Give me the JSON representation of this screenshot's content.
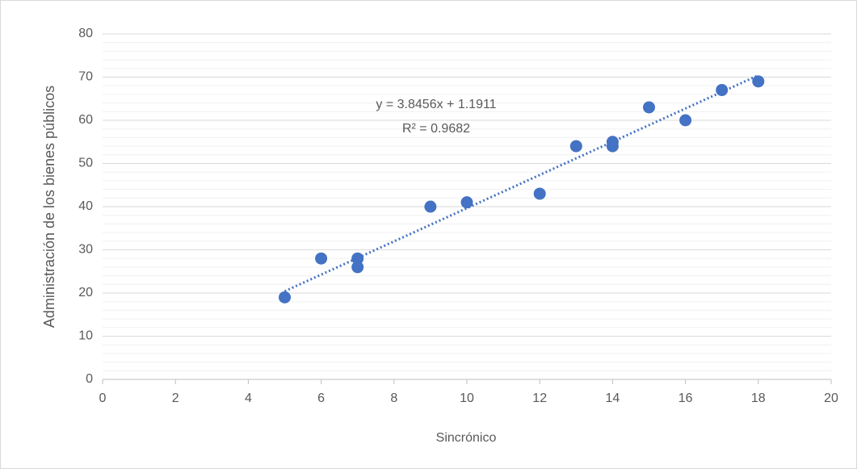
{
  "chart_data": {
    "type": "scatter",
    "x_label": "Sincrónico",
    "y_label": "Administración de los bienes públicos",
    "series": [
      {
        "color": "#4472c4",
        "x": [
          5,
          6,
          7,
          7,
          9,
          10,
          12,
          13,
          14,
          14,
          15,
          16,
          17,
          18
        ],
        "values": [
          19,
          28,
          28,
          26,
          40,
          41,
          43,
          54,
          55,
          54,
          63,
          60,
          67,
          69
        ]
      }
    ],
    "trendline": {
      "slope": 3.8456,
      "intercept": 1.1911,
      "equation": "y = 3.8456x + 1.1911",
      "r_squared": "R² = 0.9682",
      "style": "dotted"
    },
    "xlim": [
      0,
      20
    ],
    "xticks": [
      0,
      2,
      4,
      6,
      8,
      10,
      12,
      14,
      16,
      18,
      20
    ],
    "ylim": [
      0,
      80
    ],
    "yticks": [
      0,
      10,
      20,
      30,
      40,
      50,
      60,
      70,
      80
    ],
    "grid": true,
    "minor_grid": true
  }
}
